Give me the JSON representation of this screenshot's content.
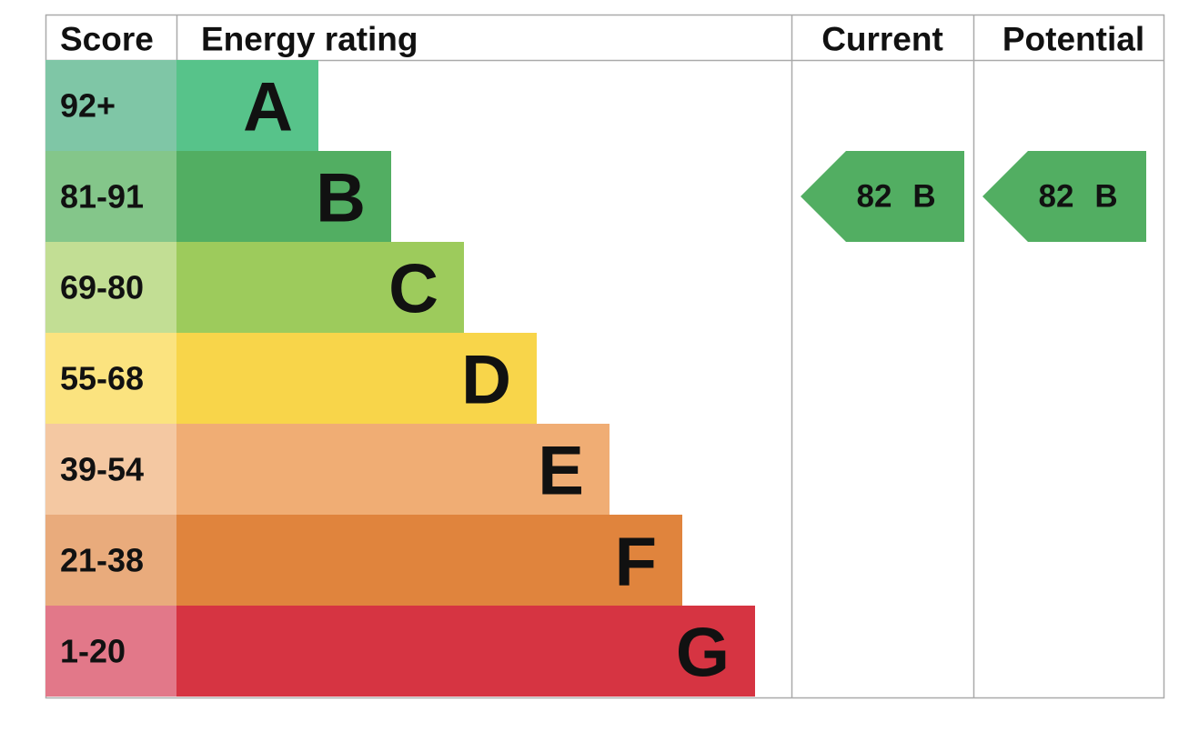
{
  "header": {
    "score": "Score",
    "rating": "Energy rating",
    "current": "Current",
    "potential": "Potential"
  },
  "bands": [
    {
      "score": "92+",
      "letter": "A"
    },
    {
      "score": "81-91",
      "letter": "B"
    },
    {
      "score": "69-80",
      "letter": "C"
    },
    {
      "score": "55-68",
      "letter": "D"
    },
    {
      "score": "39-54",
      "letter": "E"
    },
    {
      "score": "21-38",
      "letter": "F"
    },
    {
      "score": "1-20",
      "letter": "G"
    }
  ],
  "current": {
    "value": 82,
    "letter": "B"
  },
  "potential": {
    "value": 82,
    "letter": "B"
  }
}
